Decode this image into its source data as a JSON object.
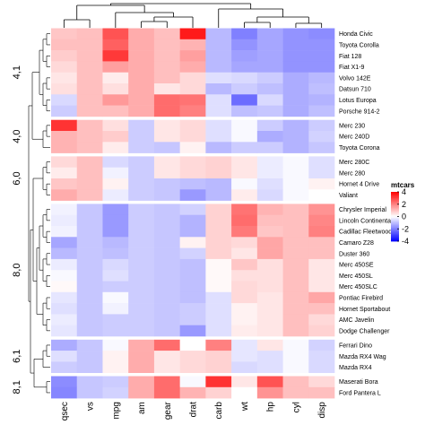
{
  "chart_data": {
    "type": "heatmap",
    "title": "",
    "legend": {
      "title": "mtcars",
      "ticks": [
        4,
        2,
        0,
        -2,
        -4
      ],
      "range": [
        -4,
        4
      ],
      "placement": "right"
    },
    "colors": {
      "low": "#0000ff",
      "mid": "#ffffff",
      "high": "#ff0000"
    },
    "columns": [
      "qsec",
      "vs",
      "mpg",
      "am",
      "gear",
      "drat",
      "carb",
      "wt",
      "hp",
      "cyl",
      "disp"
    ],
    "groups": [
      {
        "label": "4,1",
        "rows": 8
      },
      {
        "label": "4,0",
        "rows": 3
      },
      {
        "label": "6,0",
        "rows": 4
      },
      {
        "label": "8,0",
        "rows": 12
      },
      {
        "label": "6,1",
        "rows": 3
      },
      {
        "label": "8,1",
        "rows": 2
      }
    ],
    "rows": [
      "Honda Civic",
      "Toyota Corolla",
      "Fiat 128",
      "Fiat X1-9",
      "Volvo 142E",
      "Datsun 710",
      "Lotus Europa",
      "Porsche 914-2",
      "Merc 230",
      "Merc 240D",
      "Toyota Corona",
      "Merc 280C",
      "Merc 280",
      "Hornet 4 Drive",
      "Valiant",
      "Chrysler Imperial",
      "Lincoln Continental",
      "Cadillac Fleetwood",
      "Camaro Z28",
      "Duster 360",
      "Merc 450SE",
      "Merc 450SL",
      "Merc 450SLC",
      "Pontiac Firebird",
      "Hornet Sportabout",
      "AMC Javelin",
      "Dodge Challenger",
      "Ferrari Dino",
      "Mazda RX4 Wag",
      "Mazda RX4",
      "Maserati Bora",
      "Ford Pantera L"
    ],
    "values": [
      [
        0.9,
        1.0,
        2.7,
        1.3,
        1.0,
        3.6,
        -1.1,
        -2.0,
        -1.4,
        -1.7,
        -1.8
      ],
      [
        1.0,
        1.0,
        2.5,
        1.3,
        1.0,
        1.2,
        -1.1,
        -1.7,
        -1.4,
        -1.7,
        -1.7
      ],
      [
        0.8,
        1.0,
        3.1,
        1.3,
        1.0,
        1.5,
        -1.1,
        -1.5,
        -1.4,
        -1.7,
        -1.7
      ],
      [
        0.6,
        1.0,
        1.5,
        1.3,
        1.0,
        1.3,
        -1.1,
        -1.4,
        -1.4,
        -1.7,
        -1.7
      ],
      [
        0.4,
        1.0,
        0.3,
        1.3,
        1.0,
        0.6,
        -0.5,
        -0.6,
        -0.8,
        -1.3,
        -1.1
      ],
      [
        0.5,
        1.0,
        0.5,
        1.3,
        0.4,
        0.6,
        -1.1,
        -0.8,
        -1.0,
        -1.3,
        -1.0
      ],
      [
        -0.6,
        1.0,
        1.6,
        1.3,
        2.3,
        2.2,
        -0.5,
        -2.3,
        -0.6,
        -1.3,
        -1.2
      ],
      [
        -0.8,
        1.0,
        1.0,
        1.3,
        2.3,
        2.0,
        -0.5,
        -1.0,
        -0.9,
        -1.3,
        -1.0
      ],
      [
        3.2,
        1.0,
        0.5,
        -0.8,
        0.4,
        0.6,
        -0.5,
        -0.1,
        -0.8,
        -1.2,
        -0.8
      ],
      [
        1.2,
        1.0,
        0.8,
        -0.8,
        0.4,
        0.6,
        -0.5,
        -0.1,
        -1.3,
        -1.2,
        -0.7
      ],
      [
        1.2,
        1.0,
        0.3,
        -0.8,
        -0.9,
        0.2,
        -1.1,
        -0.8,
        -0.8,
        -1.2,
        -0.9
      ],
      [
        0.6,
        1.0,
        -0.6,
        -0.8,
        0.4,
        0.6,
        0.7,
        0.4,
        -0.3,
        -0.1,
        -0.5
      ],
      [
        0.3,
        1.0,
        -0.2,
        -0.8,
        0.4,
        0.6,
        0.7,
        0.4,
        -0.3,
        -0.1,
        -0.5
      ],
      [
        0.9,
        1.0,
        0.2,
        -0.8,
        -0.9,
        -1.0,
        -1.1,
        -0.1,
        -0.5,
        -0.1,
        0.2
      ],
      [
        1.3,
        1.0,
        -0.3,
        -0.8,
        -0.9,
        -1.6,
        -1.1,
        0.3,
        -0.6,
        -0.1,
        0.0
      ],
      [
        -0.2,
        -0.9,
        -1.6,
        -0.8,
        -0.9,
        -0.7,
        0.7,
        2.2,
        1.2,
        1.0,
        1.7
      ],
      [
        -0.3,
        -0.9,
        -1.6,
        -0.8,
        -0.9,
        -1.2,
        0.7,
        2.3,
        1.0,
        1.0,
        1.9
      ],
      [
        -0.2,
        -0.9,
        -1.6,
        -0.8,
        -0.9,
        -1.2,
        0.7,
        2.1,
        0.9,
        1.0,
        2.0
      ],
      [
        -1.4,
        -0.9,
        -1.1,
        -0.8,
        -0.9,
        0.2,
        0.7,
        0.6,
        1.4,
        1.0,
        1.0
      ],
      [
        -1.1,
        -0.9,
        -1.0,
        -0.8,
        -0.9,
        -0.7,
        0.7,
        0.4,
        1.4,
        1.0,
        1.0
      ],
      [
        -0.3,
        -0.9,
        -0.6,
        -0.8,
        -0.9,
        -1.0,
        0.1,
        0.9,
        0.5,
        1.0,
        0.4
      ],
      [
        -0.1,
        -0.9,
        -0.5,
        -0.8,
        -0.9,
        -1.0,
        0.1,
        0.5,
        0.5,
        1.0,
        0.4
      ],
      [
        0.1,
        -0.9,
        -0.8,
        -0.8,
        -0.9,
        -1.0,
        0.1,
        0.6,
        0.5,
        1.0,
        0.4
      ],
      [
        -0.4,
        -0.9,
        -0.1,
        -0.8,
        -0.9,
        -1.0,
        -0.5,
        0.6,
        0.4,
        1.0,
        1.4
      ],
      [
        -0.5,
        -0.9,
        -0.2,
        -0.8,
        -0.9,
        -0.8,
        -0.5,
        0.2,
        0.4,
        1.0,
        1.0
      ],
      [
        -0.3,
        -0.9,
        -0.8,
        -0.8,
        -0.9,
        -0.8,
        -0.5,
        0.2,
        0.4,
        1.0,
        0.6
      ],
      [
        -0.4,
        -0.9,
        -0.8,
        -0.8,
        -0.9,
        -1.6,
        -0.5,
        0.3,
        0.4,
        1.0,
        0.7
      ],
      [
        -1.3,
        -0.9,
        -0.1,
        1.3,
        2.3,
        0.0,
        2.0,
        -0.4,
        0.4,
        -0.1,
        -0.7
      ],
      [
        -0.5,
        -0.9,
        0.2,
        1.3,
        0.4,
        0.6,
        0.7,
        -0.4,
        -0.5,
        -0.1,
        -0.6
      ],
      [
        -0.8,
        -0.9,
        0.2,
        1.3,
        0.4,
        0.6,
        0.7,
        -0.6,
        -0.5,
        -0.1,
        -0.6
      ],
      [
        -1.8,
        -0.9,
        -0.8,
        1.3,
        2.3,
        -0.1,
        3.2,
        0.4,
        2.7,
        1.0,
        0.6
      ],
      [
        -1.9,
        -0.9,
        -0.7,
        1.3,
        2.3,
        1.2,
        0.7,
        0.0,
        1.7,
        1.0,
        1.0
      ]
    ]
  }
}
